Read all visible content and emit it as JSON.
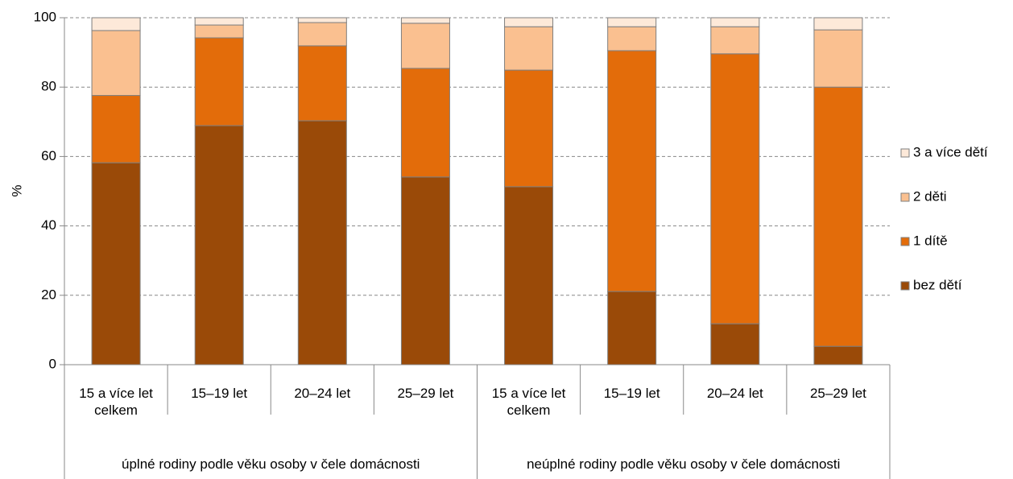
{
  "chart_data": {
    "type": "stacked_bar",
    "ylabel": "%",
    "groups": [
      {
        "name": "úplné rodiny podle věku osoby v čele domácnosti",
        "categories": [
          "15 a více let celkem",
          "15–19 let",
          "20–24 let",
          "25–29 let"
        ]
      },
      {
        "name": "neúplné rodiny podle věku osoby v čele domácnosti",
        "categories": [
          "15 a více let celkem",
          "15–19 let",
          "20–24 let",
          "25–29 let"
        ]
      }
    ],
    "series": [
      {
        "name": "bez dětí",
        "color": "#9a4a08",
        "values": [
          58.2,
          68.9,
          70.3,
          54.1,
          51.3,
          21.1,
          11.8,
          5.3
        ]
      },
      {
        "name": "1 dítě",
        "color": "#e36c0a",
        "values": [
          19.4,
          25.3,
          21.6,
          31.3,
          33.6,
          69.4,
          77.8,
          74.7
        ]
      },
      {
        "name": "2 děti",
        "color": "#fac090",
        "values": [
          18.7,
          3.7,
          6.7,
          13.0,
          12.5,
          6.9,
          7.8,
          16.5
        ]
      },
      {
        "name": "3 a více dětí",
        "color": "#fde9d9",
        "values": [
          3.7,
          2.1,
          1.4,
          1.6,
          2.6,
          2.6,
          2.6,
          3.5
        ]
      }
    ],
    "ylim": [
      0,
      100
    ],
    "yticks": [
      0,
      20,
      40,
      60,
      80,
      100
    ],
    "grid": true,
    "legend": "right"
  }
}
